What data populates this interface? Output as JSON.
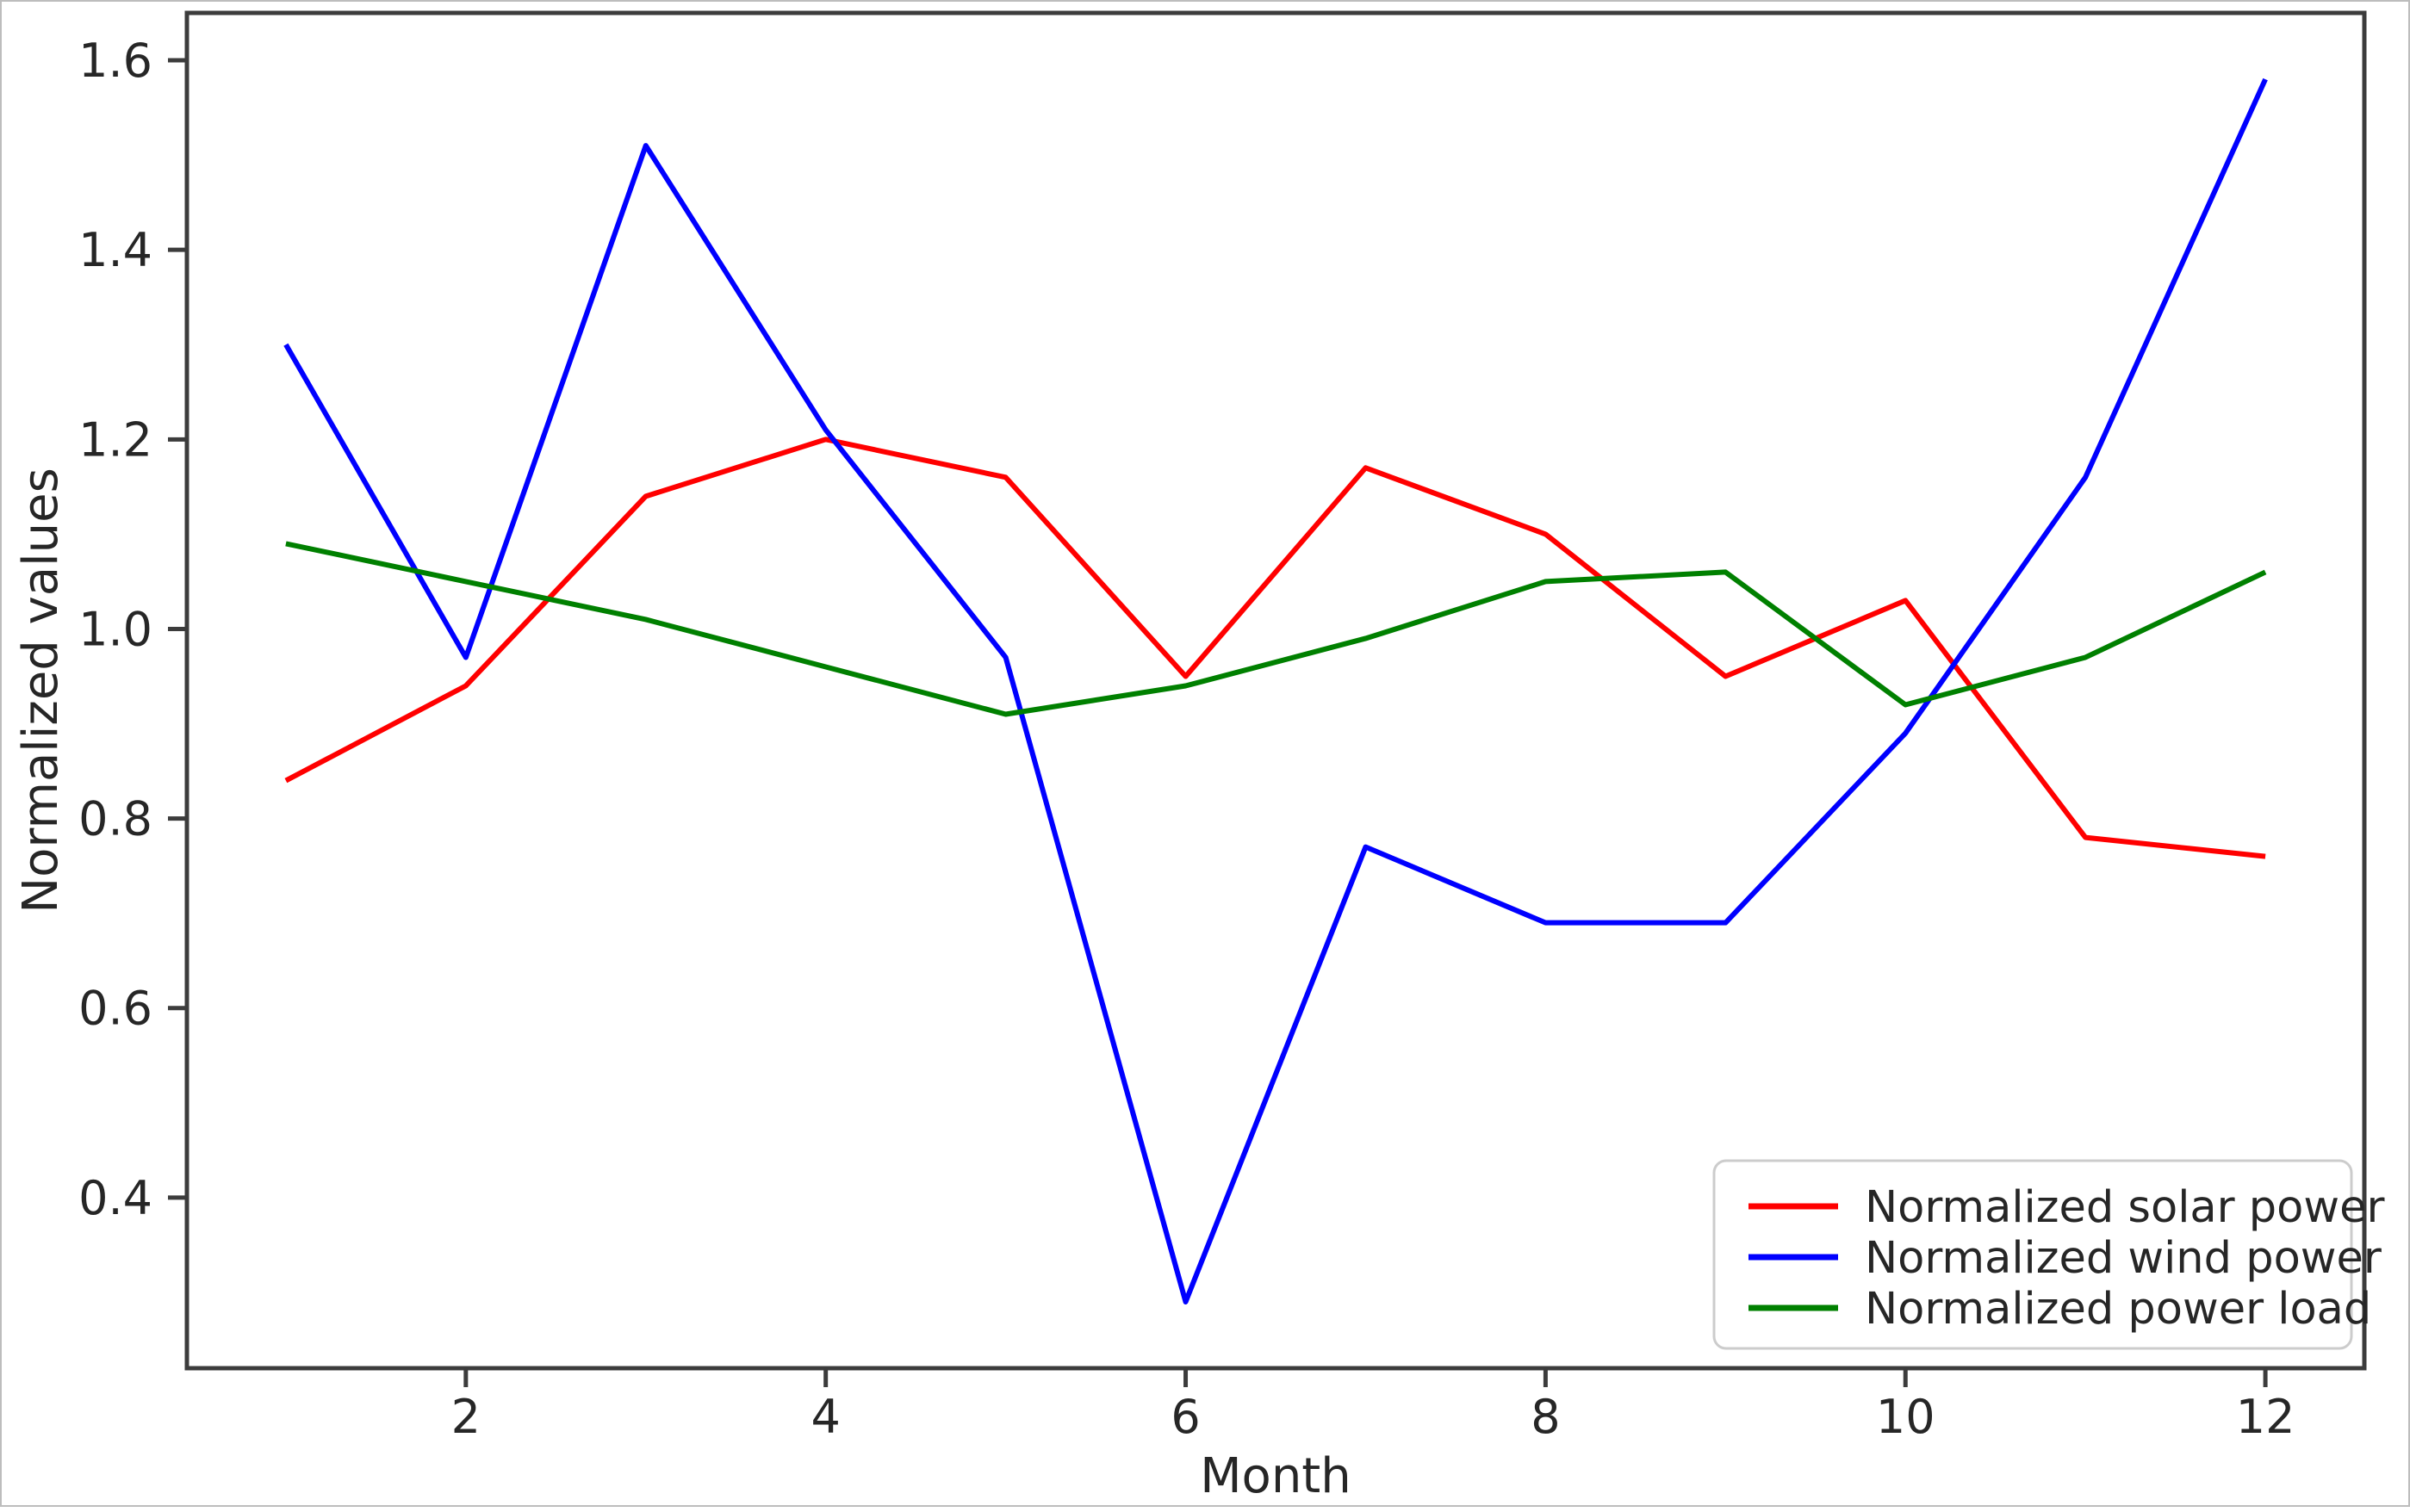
{
  "figure": {
    "background": "#ffffff",
    "border_color": "#bdbdbd"
  },
  "chart_data": {
    "type": "line",
    "title": "",
    "xlabel": "Month",
    "ylabel": "Normalized values",
    "x": [
      1,
      2,
      3,
      4,
      5,
      6,
      7,
      8,
      9,
      10,
      11,
      12
    ],
    "x_ticks": [
      2,
      4,
      6,
      8,
      10,
      12
    ],
    "y_ticks": [
      0.4,
      0.6,
      0.8,
      1.0,
      1.2,
      1.4,
      1.6
    ],
    "xlim": [
      0.45,
      12.55
    ],
    "ylim": [
      0.22,
      1.65
    ],
    "grid": false,
    "legend_position": "lower right",
    "axis_color": "#3c3c3c",
    "text_color": "#262626",
    "series": [
      {
        "name": "Normalized solar power",
        "color": "#ff0000",
        "values": [
          0.84,
          0.94,
          1.14,
          1.2,
          1.16,
          0.95,
          1.17,
          1.1,
          0.95,
          1.03,
          0.78,
          0.76
        ]
      },
      {
        "name": "Normalized wind power",
        "color": "#0000ff",
        "values": [
          1.3,
          0.97,
          1.51,
          1.21,
          0.97,
          0.29,
          0.77,
          0.69,
          0.69,
          0.89,
          1.16,
          1.58
        ]
      },
      {
        "name": "Normalized power load",
        "color": "#008000",
        "values": [
          1.09,
          1.05,
          1.01,
          0.96,
          0.91,
          0.94,
          0.99,
          1.05,
          1.06,
          0.92,
          0.97,
          1.06
        ]
      }
    ]
  }
}
